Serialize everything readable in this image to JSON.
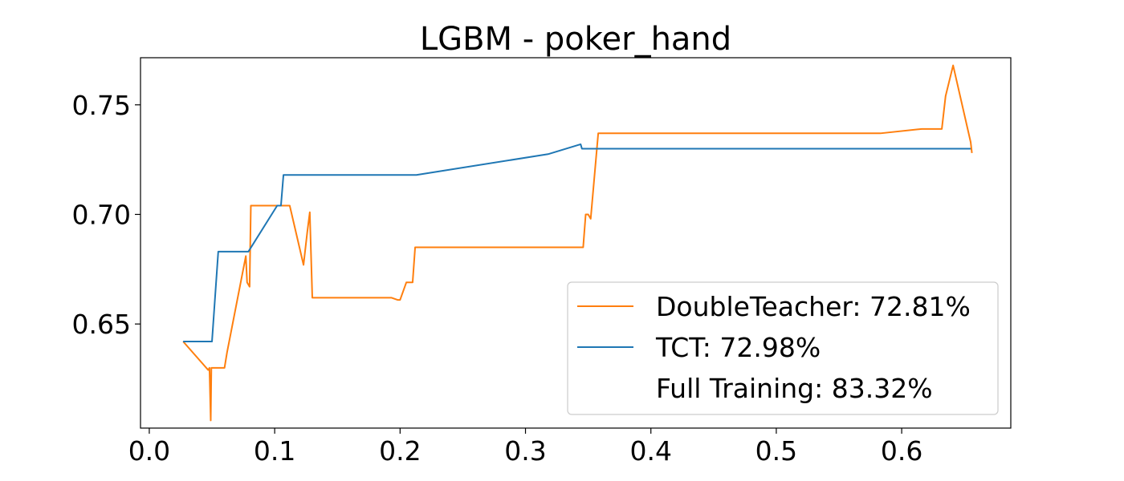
{
  "chart_data": {
    "type": "line",
    "title": "LGBM - poker_hand",
    "xlabel": "",
    "ylabel": "",
    "xlim": [
      -0.007,
      0.687
    ],
    "ylim": [
      0.6025,
      0.7715
    ],
    "xticks": [
      0.0,
      0.1,
      0.2,
      0.3,
      0.4,
      0.5,
      0.6
    ],
    "xtick_labels": [
      "0.0",
      "0.1",
      "0.2",
      "0.3",
      "0.4",
      "0.5",
      "0.6"
    ],
    "yticks": [
      0.65,
      0.7,
      0.75
    ],
    "ytick_labels": [
      "0.65",
      "0.70",
      "0.75"
    ],
    "grid": false,
    "legend_position": "lower-right",
    "legend": [
      {
        "label": "DoubleTeacher: 72.81%",
        "color": "#ff7f0e",
        "has_line": true
      },
      {
        "label": "TCT: 72.98%",
        "color": "#1f77b4",
        "has_line": true
      },
      {
        "label": "Full Training: 83.32%",
        "color": "#2ca02c",
        "has_line": false
      }
    ],
    "series": [
      {
        "name": "DoubleTeacher",
        "color": "#ff7f0e",
        "x": [
          0.027,
          0.047,
          0.048,
          0.049,
          0.0495,
          0.05,
          0.052,
          0.06,
          0.062,
          0.077,
          0.078,
          0.08,
          0.081,
          0.11,
          0.112,
          0.123,
          0.126,
          0.128,
          0.13,
          0.193,
          0.198,
          0.2,
          0.205,
          0.207,
          0.21,
          0.212,
          0.346,
          0.348,
          0.35,
          0.352,
          0.358,
          0.359,
          0.36,
          0.45,
          0.5,
          0.583,
          0.616,
          0.632,
          0.635,
          0.641,
          0.655,
          0.656
        ],
        "y": [
          0.642,
          0.629,
          0.63,
          0.606,
          0.63,
          0.63,
          0.63,
          0.63,
          0.637,
          0.681,
          0.669,
          0.667,
          0.704,
          0.704,
          0.704,
          0.677,
          0.692,
          0.701,
          0.662,
          0.662,
          0.661,
          0.661,
          0.669,
          0.669,
          0.669,
          0.685,
          0.685,
          0.7,
          0.7,
          0.698,
          0.737,
          0.737,
          0.737,
          0.737,
          0.737,
          0.737,
          0.739,
          0.739,
          0.754,
          0.768,
          0.733,
          0.728
        ]
      },
      {
        "name": "TCT",
        "color": "#1f77b4",
        "x": [
          0.027,
          0.03,
          0.05,
          0.055,
          0.06,
          0.079,
          0.102,
          0.105,
          0.107,
          0.213,
          0.318,
          0.344,
          0.345,
          0.35,
          0.4,
          0.5,
          0.6,
          0.655
        ],
        "y": [
          0.642,
          0.642,
          0.642,
          0.683,
          0.683,
          0.683,
          0.704,
          0.704,
          0.718,
          0.718,
          0.7275,
          0.732,
          0.73,
          0.73,
          0.73,
          0.73,
          0.73,
          0.73
        ]
      }
    ]
  }
}
